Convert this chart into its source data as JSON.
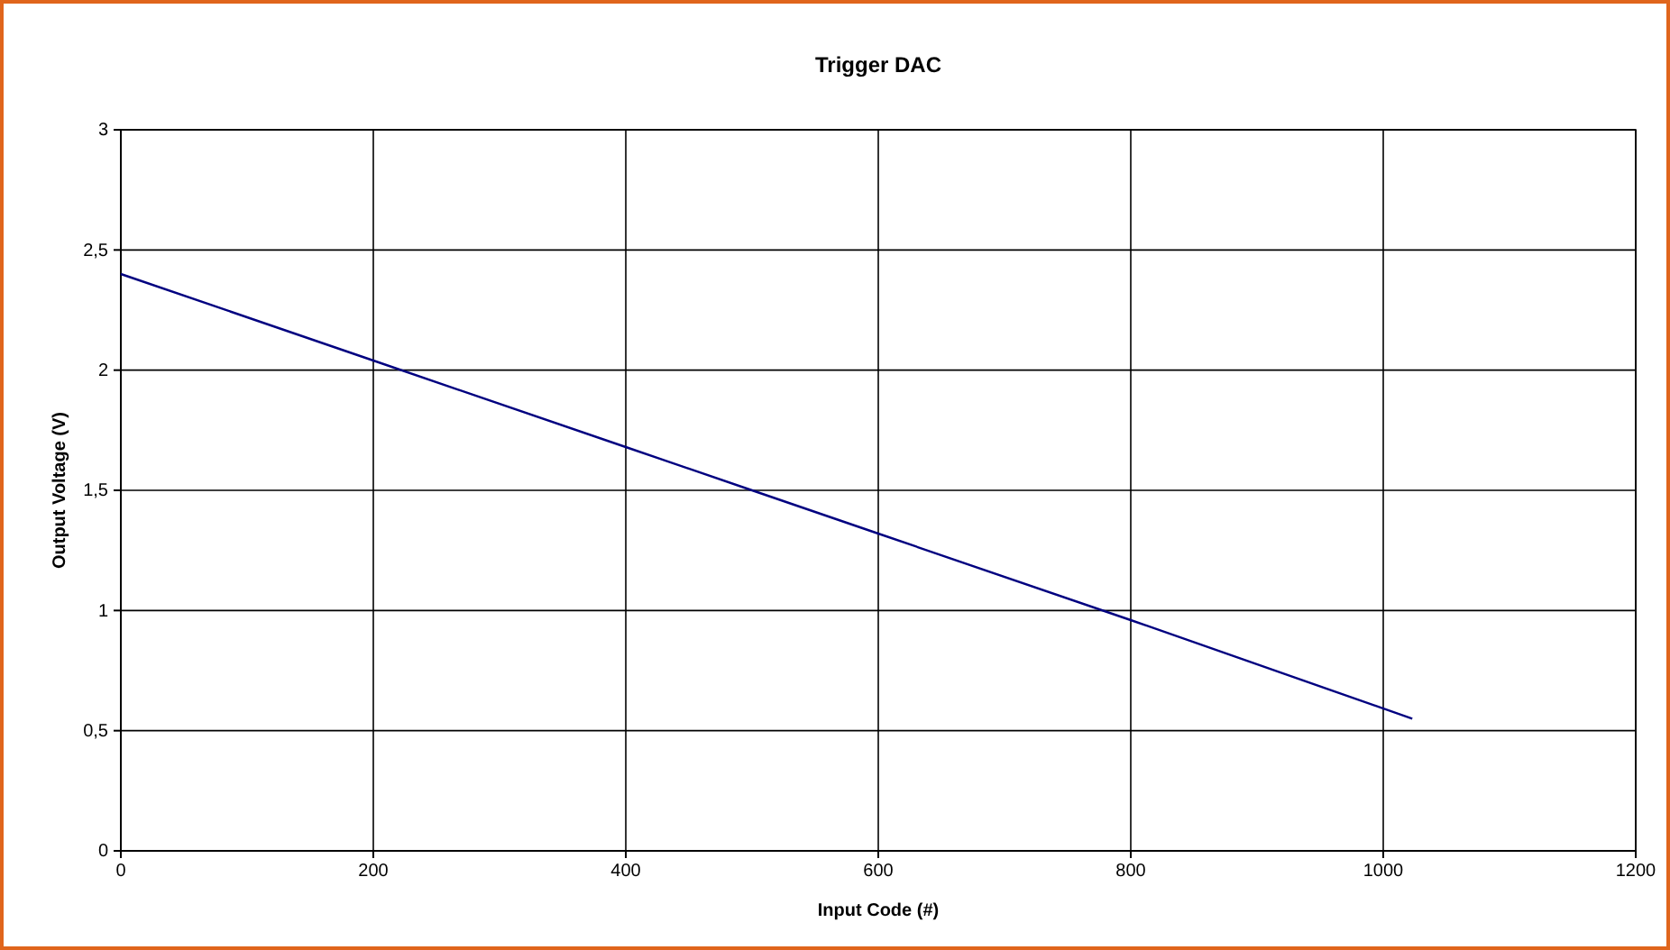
{
  "chart_data": {
    "type": "line",
    "title": "Trigger DAC",
    "xlabel": "Input Code (#)",
    "ylabel": "Output Voltage (V)",
    "x": [
      0,
      200,
      400,
      500,
      600,
      800,
      1023
    ],
    "series": [
      {
        "color": "#000080",
        "values": [
          2.4,
          2.04,
          1.68,
          1.5,
          1.32,
          0.96,
          0.55
        ]
      }
    ],
    "xlim": [
      0,
      1200
    ],
    "xticks": [
      0,
      200,
      400,
      600,
      800,
      1000,
      1200
    ],
    "ylim": [
      0,
      3
    ],
    "yticks": [
      0,
      {
        "value": 0.5,
        "label": "0,5"
      },
      1,
      {
        "value": 1.5,
        "label": "1,5"
      },
      2,
      {
        "value": 2.5,
        "label": "2,5"
      },
      3
    ],
    "grid": true,
    "marker": "none",
    "line_style": "solid"
  }
}
